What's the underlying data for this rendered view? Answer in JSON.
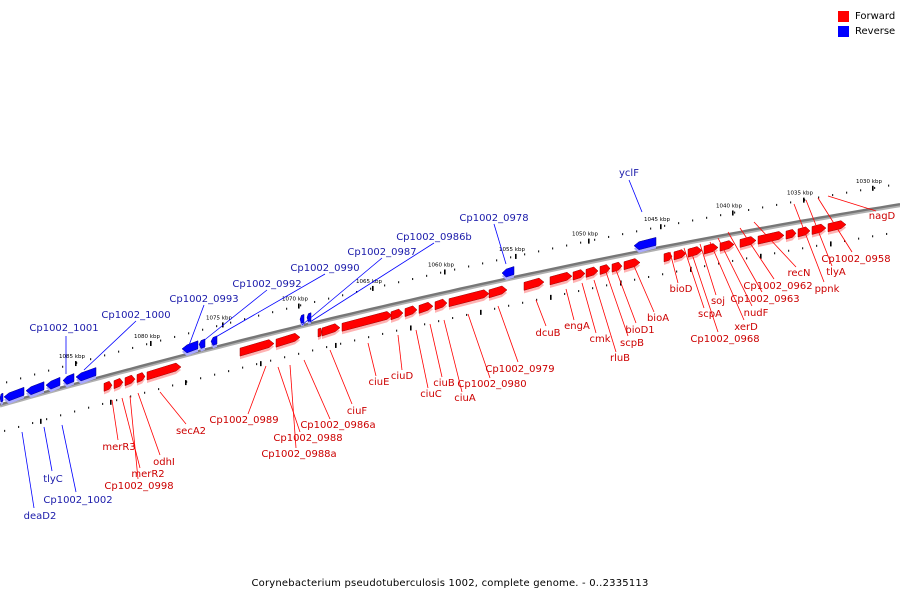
{
  "caption": "Corynebacterium pseudotuberculosis 1002, complete genome. - 0..2335113",
  "legend": [
    {
      "label": "Forward",
      "color": "#ff0000"
    },
    {
      "label": "Reverse",
      "color": "#0000ff"
    }
  ],
  "colors": {
    "forward": "#ff0000",
    "reverse": "#0000ff",
    "backbone": "#777777",
    "text_forward": "#cc0000",
    "text_reverse": "#1a1aaa"
  },
  "ruler": [
    "1030 kbp",
    "1035 kbp",
    "1040 kbp",
    "1045 kbp",
    "1050 kbp",
    "1055 kbp",
    "1060 kbp",
    "1065 kbp",
    "1070 kbp",
    "1075 kbp",
    "1080 kbp",
    "1085 kbp"
  ],
  "genes": [
    {
      "name": "deaD2",
      "strand": "reverse"
    },
    {
      "name": "tlyC",
      "strand": "reverse"
    },
    {
      "name": "Cp1002_1002",
      "strand": "reverse"
    },
    {
      "name": "Cp1002_1001",
      "strand": "reverse"
    },
    {
      "name": "Cp1002_1000",
      "strand": "reverse"
    },
    {
      "name": "Cp1002_0993",
      "strand": "reverse"
    },
    {
      "name": "Cp1002_0992",
      "strand": "reverse"
    },
    {
      "name": "Cp1002_0990",
      "strand": "reverse"
    },
    {
      "name": "Cp1002_0987",
      "strand": "reverse"
    },
    {
      "name": "Cp1002_0986b",
      "strand": "reverse"
    },
    {
      "name": "Cp1002_0978",
      "strand": "reverse"
    },
    {
      "name": "yclF",
      "strand": "reverse"
    },
    {
      "name": "merR3",
      "strand": "forward"
    },
    {
      "name": "merR2",
      "strand": "forward"
    },
    {
      "name": "Cp1002_0998",
      "strand": "forward"
    },
    {
      "name": "odhI",
      "strand": "forward"
    },
    {
      "name": "secA2",
      "strand": "forward"
    },
    {
      "name": "Cp1002_0989",
      "strand": "forward"
    },
    {
      "name": "Cp1002_0988",
      "strand": "forward"
    },
    {
      "name": "Cp1002_0988a",
      "strand": "forward"
    },
    {
      "name": "Cp1002_0986a",
      "strand": "forward"
    },
    {
      "name": "ciuF",
      "strand": "forward"
    },
    {
      "name": "ciuE",
      "strand": "forward"
    },
    {
      "name": "ciuD",
      "strand": "forward"
    },
    {
      "name": "ciuC",
      "strand": "forward"
    },
    {
      "name": "ciuB",
      "strand": "forward"
    },
    {
      "name": "ciuA",
      "strand": "forward"
    },
    {
      "name": "Cp1002_0980",
      "strand": "forward"
    },
    {
      "name": "Cp1002_0979",
      "strand": "forward"
    },
    {
      "name": "dcuB",
      "strand": "forward"
    },
    {
      "name": "engA",
      "strand": "forward"
    },
    {
      "name": "cmk",
      "strand": "forward"
    },
    {
      "name": "rluB",
      "strand": "forward"
    },
    {
      "name": "scpB",
      "strand": "forward"
    },
    {
      "name": "bioD1",
      "strand": "forward"
    },
    {
      "name": "bioA",
      "strand": "forward"
    },
    {
      "name": "bioD",
      "strand": "forward"
    },
    {
      "name": "scpA",
      "strand": "forward"
    },
    {
      "name": "Cp1002_0968",
      "strand": "forward"
    },
    {
      "name": "soj",
      "strand": "forward"
    },
    {
      "name": "nudF",
      "strand": "forward"
    },
    {
      "name": "xerD",
      "strand": "forward"
    },
    {
      "name": "Cp1002_0963",
      "strand": "forward"
    },
    {
      "name": "Cp1002_0962",
      "strand": "forward"
    },
    {
      "name": "recN",
      "strand": "forward"
    },
    {
      "name": "ppnk",
      "strand": "forward"
    },
    {
      "name": "tlyA",
      "strand": "forward"
    },
    {
      "name": "Cp1002_0958",
      "strand": "forward"
    },
    {
      "name": "nagD",
      "strand": "forward"
    }
  ]
}
